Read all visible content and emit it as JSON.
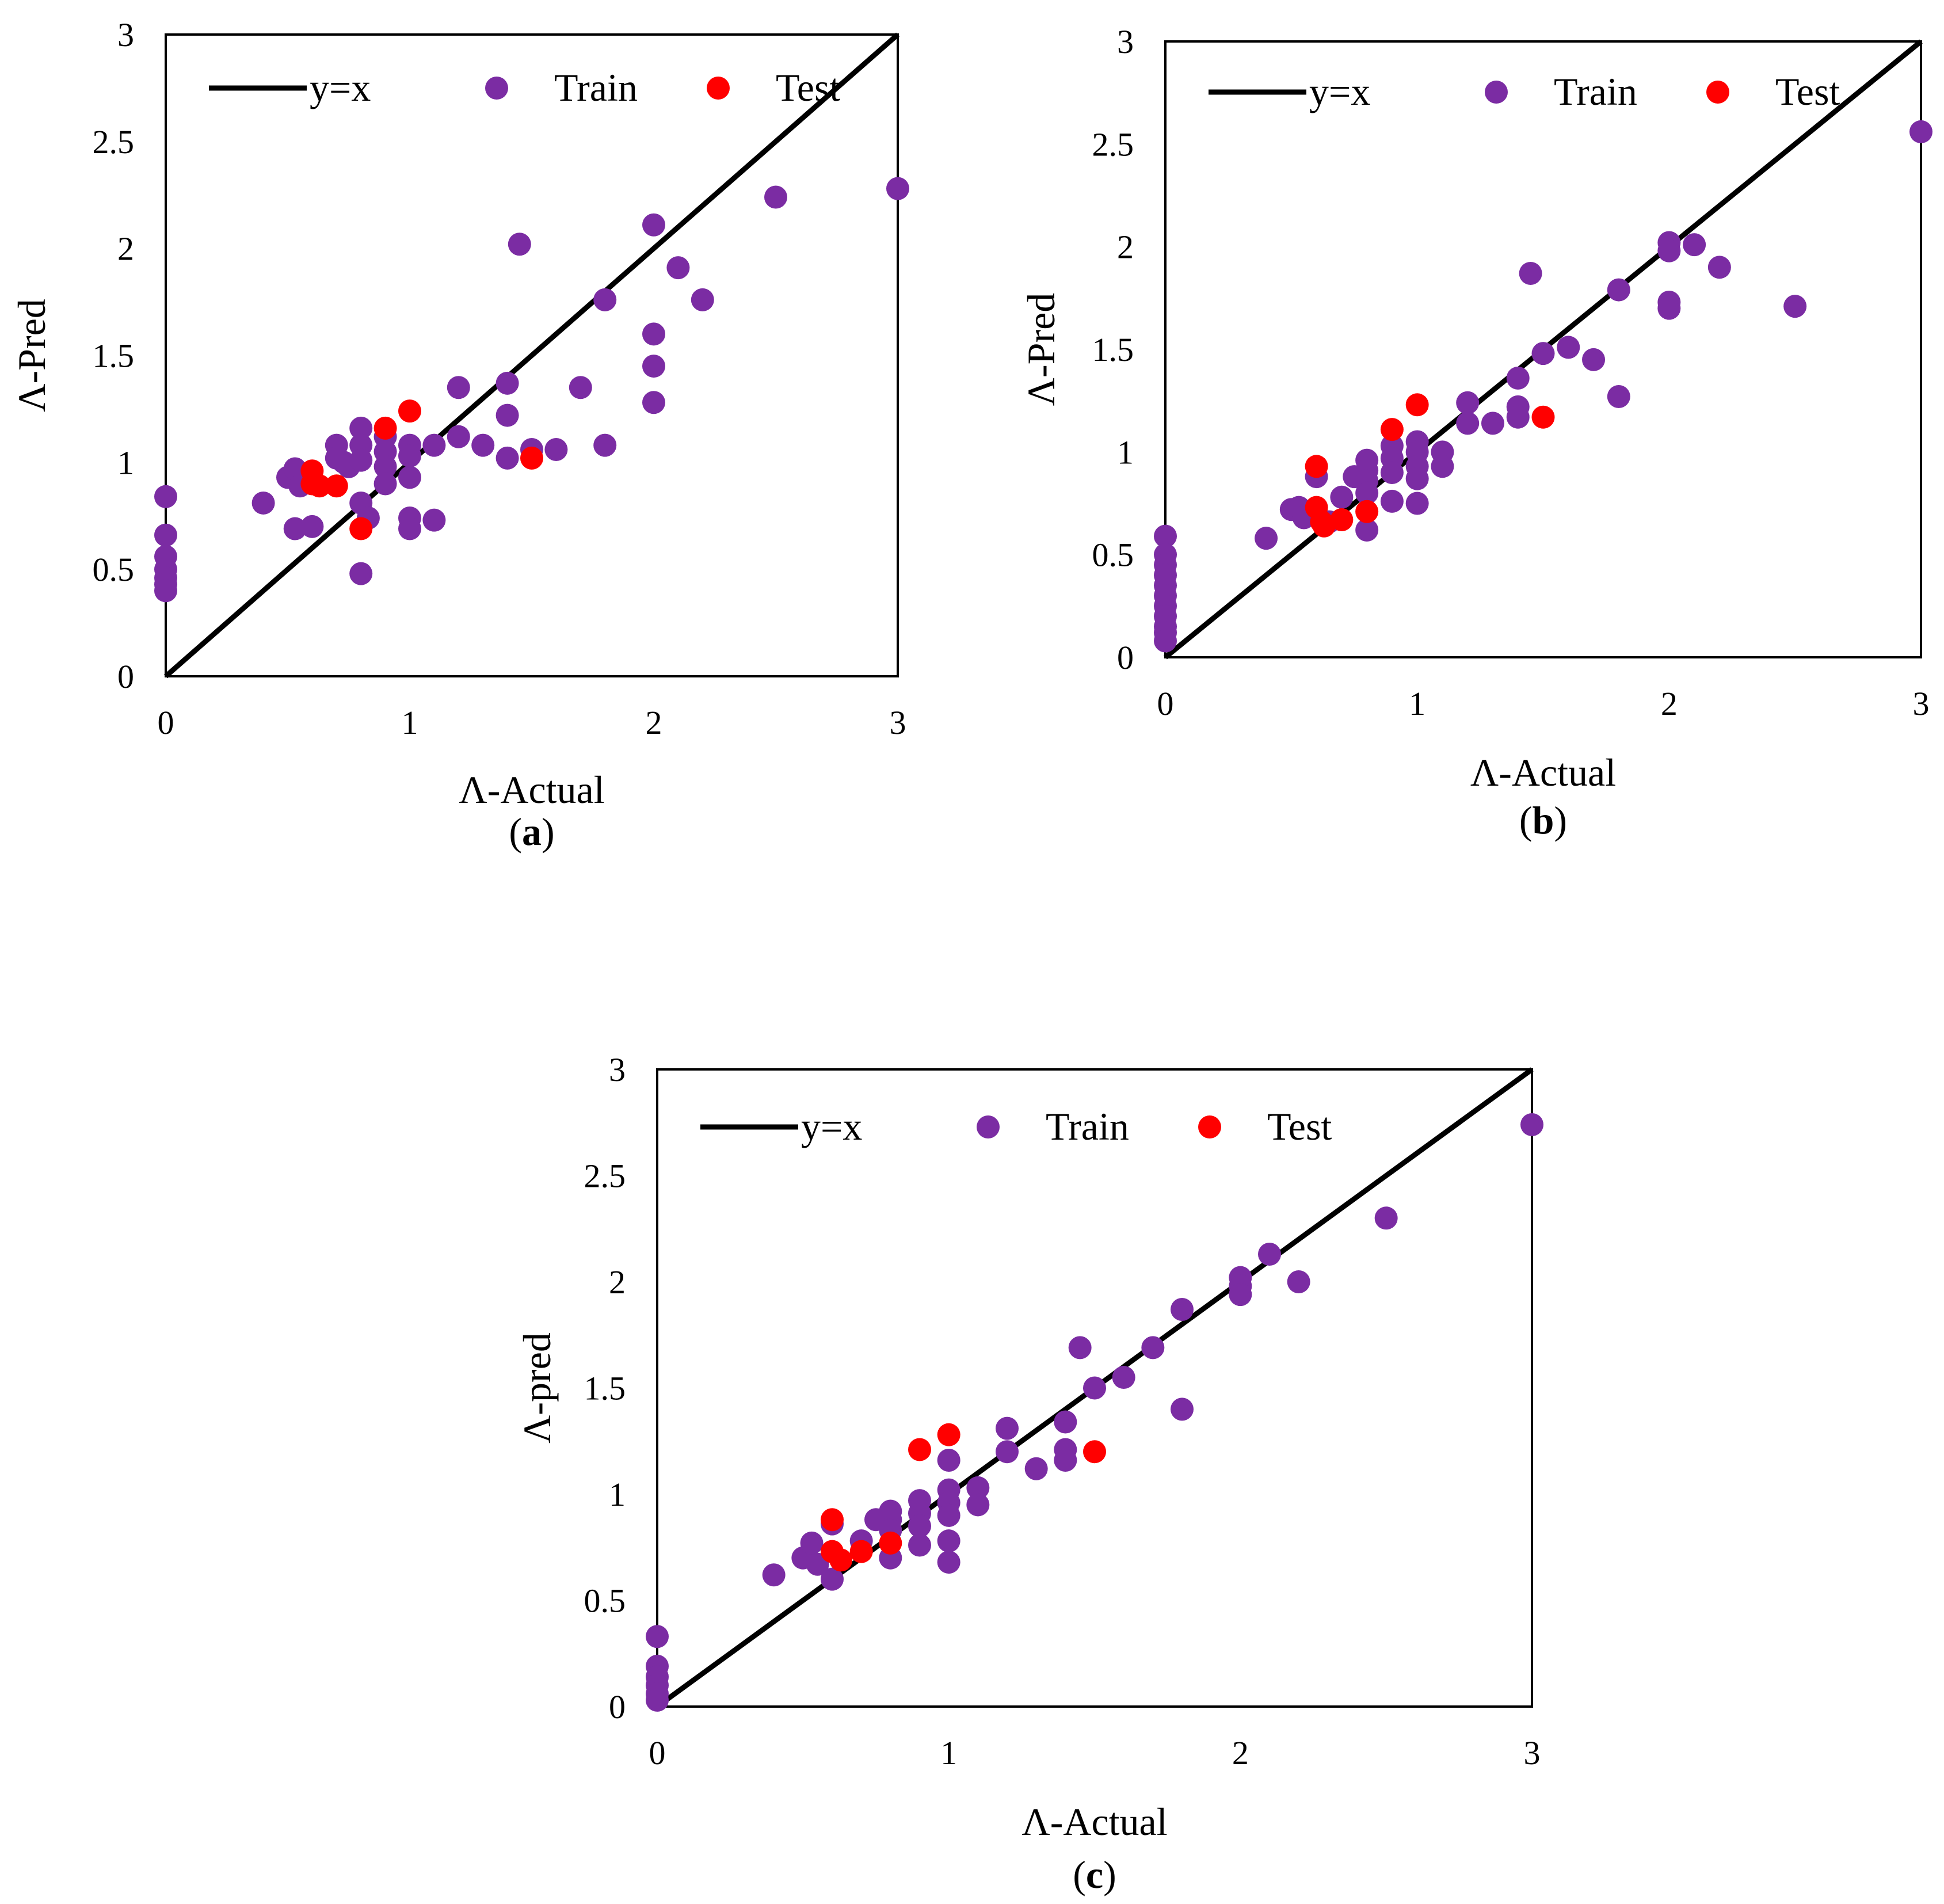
{
  "colors": {
    "train": "#7B2CA3",
    "test": "#FF0000",
    "line": "#000000",
    "frame": "#000000"
  },
  "chart_data": [
    {
      "type": "scatter",
      "panel": "(a)",
      "panel_letter": "a",
      "xlabel": "Λ-Actual",
      "ylabel": "Λ-Pred",
      "xlim": [
        0,
        3
      ],
      "ylim": [
        0,
        3
      ],
      "xticks": [
        "0",
        "1",
        "2",
        "3"
      ],
      "yticks": [
        "0",
        "0.5",
        "1",
        "1.5",
        "2",
        "2.5",
        "3"
      ],
      "legend": [
        "y=x",
        "Train",
        "Test"
      ],
      "series": [
        {
          "name": "Train",
          "points": [
            [
              0,
              0.84
            ],
            [
              0,
              0.66
            ],
            [
              0,
              0.56
            ],
            [
              0,
              0.5
            ],
            [
              0,
              0.46
            ],
            [
              0,
              0.43
            ],
            [
              0,
              0.4
            ],
            [
              0.4,
              0.81
            ],
            [
              0.5,
              0.93
            ],
            [
              0.53,
              0.97
            ],
            [
              0.55,
              0.89
            ],
            [
              0.53,
              0.69
            ],
            [
              0.6,
              0.7
            ],
            [
              0.7,
              1.08
            ],
            [
              0.7,
              1.02
            ],
            [
              0.73,
              1.0
            ],
            [
              0.75,
              0.98
            ],
            [
              0.8,
              1.16
            ],
            [
              0.8,
              1.08
            ],
            [
              0.8,
              1.01
            ],
            [
              0.8,
              0.81
            ],
            [
              0.83,
              0.74
            ],
            [
              0.8,
              0.48
            ],
            [
              0.9,
              1.12
            ],
            [
              0.9,
              1.05
            ],
            [
              0.9,
              0.98
            ],
            [
              0.9,
              0.9
            ],
            [
              1.0,
              1.08
            ],
            [
              1.0,
              1.03
            ],
            [
              1.0,
              0.93
            ],
            [
              1.0,
              0.74
            ],
            [
              1.0,
              0.69
            ],
            [
              1.1,
              1.08
            ],
            [
              1.1,
              0.73
            ],
            [
              1.2,
              1.35
            ],
            [
              1.2,
              1.12
            ],
            [
              1.3,
              1.08
            ],
            [
              1.4,
              1.37
            ],
            [
              1.4,
              1.22
            ],
            [
              1.4,
              1.02
            ],
            [
              1.45,
              2.02
            ],
            [
              1.5,
              1.06
            ],
            [
              1.6,
              1.06
            ],
            [
              1.7,
              1.35
            ],
            [
              1.8,
              1.76
            ],
            [
              1.8,
              1.08
            ],
            [
              2.0,
              2.11
            ],
            [
              2.0,
              1.6
            ],
            [
              2.0,
              1.45
            ],
            [
              2.0,
              1.28
            ],
            [
              2.1,
              1.91
            ],
            [
              2.2,
              1.76
            ],
            [
              2.5,
              2.24
            ],
            [
              3.0,
              2.28
            ]
          ]
        },
        {
          "name": "Test",
          "points": [
            [
              0.6,
              0.96
            ],
            [
              0.6,
              0.9
            ],
            [
              0.63,
              0.89
            ],
            [
              0.7,
              0.89
            ],
            [
              0.8,
              0.69
            ],
            [
              0.9,
              1.16
            ],
            [
              1.0,
              1.24
            ],
            [
              1.5,
              1.02
            ]
          ]
        }
      ]
    },
    {
      "type": "scatter",
      "panel": "(b)",
      "panel_letter": "b",
      "xlabel": "Λ-Actual",
      "ylabel": "Λ-Pred",
      "xlim": [
        0,
        3
      ],
      "ylim": [
        0,
        3
      ],
      "xticks": [
        "0",
        "1",
        "2",
        "3"
      ],
      "yticks": [
        "0",
        "0.5",
        "1",
        "1.5",
        "2",
        "2.5",
        "3"
      ],
      "legend": [
        "y=x",
        "Train",
        "Test"
      ],
      "series": [
        {
          "name": "Train",
          "points": [
            [
              0,
              0.59
            ],
            [
              0,
              0.5
            ],
            [
              0,
              0.45
            ],
            [
              0,
              0.4
            ],
            [
              0,
              0.35
            ],
            [
              0,
              0.3
            ],
            [
              0,
              0.25
            ],
            [
              0,
              0.2
            ],
            [
              0,
              0.15
            ],
            [
              0,
              0.12
            ],
            [
              0,
              0.08
            ],
            [
              0.4,
              0.58
            ],
            [
              0.5,
              0.72
            ],
            [
              0.53,
              0.73
            ],
            [
              0.55,
              0.68
            ],
            [
              0.6,
              0.88
            ],
            [
              0.65,
              0.66
            ],
            [
              0.7,
              0.78
            ],
            [
              0.75,
              0.88
            ],
            [
              0.8,
              0.96
            ],
            [
              0.8,
              0.91
            ],
            [
              0.8,
              0.86
            ],
            [
              0.8,
              0.8
            ],
            [
              0.8,
              0.62
            ],
            [
              0.9,
              1.03
            ],
            [
              0.9,
              0.97
            ],
            [
              0.9,
              0.9
            ],
            [
              0.9,
              0.76
            ],
            [
              1.0,
              1.05
            ],
            [
              1.0,
              1.0
            ],
            [
              1.0,
              0.93
            ],
            [
              1.0,
              0.87
            ],
            [
              1.0,
              0.75
            ],
            [
              1.1,
              1.0
            ],
            [
              1.1,
              0.93
            ],
            [
              1.2,
              1.24
            ],
            [
              1.2,
              1.14
            ],
            [
              1.3,
              1.14
            ],
            [
              1.4,
              1.36
            ],
            [
              1.4,
              1.22
            ],
            [
              1.4,
              1.17
            ],
            [
              1.45,
              1.87
            ],
            [
              1.5,
              1.48
            ],
            [
              1.6,
              1.51
            ],
            [
              1.7,
              1.45
            ],
            [
              1.8,
              1.79
            ],
            [
              1.8,
              1.27
            ],
            [
              2.0,
              2.02
            ],
            [
              2.0,
              1.98
            ],
            [
              2.0,
              1.73
            ],
            [
              2.0,
              1.7
            ],
            [
              2.1,
              2.01
            ],
            [
              2.2,
              1.9
            ],
            [
              2.5,
              1.71
            ],
            [
              3.0,
              2.56
            ]
          ]
        },
        {
          "name": "Test",
          "points": [
            [
              0.6,
              0.93
            ],
            [
              0.6,
              0.73
            ],
            [
              0.62,
              0.66
            ],
            [
              0.63,
              0.64
            ],
            [
              0.7,
              0.67
            ],
            [
              0.8,
              0.71
            ],
            [
              0.9,
              1.11
            ],
            [
              1.0,
              1.23
            ],
            [
              1.5,
              1.17
            ]
          ]
        }
      ]
    },
    {
      "type": "scatter",
      "panel": "(c)",
      "panel_letter": "c",
      "xlabel": "Λ-Actual",
      "ylabel": "Λ-pred",
      "xlim": [
        0,
        3
      ],
      "ylim": [
        0,
        3
      ],
      "xticks": [
        "0",
        "1",
        "2",
        "3"
      ],
      "yticks": [
        "0",
        "0.5",
        "1",
        "1.5",
        "2",
        "2.5",
        "3"
      ],
      "legend": [
        "y=x",
        "Train",
        "Test"
      ],
      "series": [
        {
          "name": "Train",
          "points": [
            [
              0,
              0.33
            ],
            [
              0,
              0.19
            ],
            [
              0,
              0.14
            ],
            [
              0,
              0.1
            ],
            [
              0,
              0.06
            ],
            [
              0,
              0.03
            ],
            [
              0.4,
              0.62
            ],
            [
              0.5,
              0.7
            ],
            [
              0.53,
              0.77
            ],
            [
              0.55,
              0.67
            ],
            [
              0.6,
              0.86
            ],
            [
              0.6,
              0.6
            ],
            [
              0.7,
              0.78
            ],
            [
              0.75,
              0.88
            ],
            [
              0.8,
              0.92
            ],
            [
              0.8,
              0.88
            ],
            [
              0.8,
              0.83
            ],
            [
              0.8,
              0.7
            ],
            [
              0.9,
              0.97
            ],
            [
              0.9,
              0.91
            ],
            [
              0.9,
              0.85
            ],
            [
              0.9,
              0.76
            ],
            [
              1.0,
              1.16
            ],
            [
              1.0,
              1.02
            ],
            [
              1.0,
              0.96
            ],
            [
              1.0,
              0.9
            ],
            [
              1.0,
              0.78
            ],
            [
              1.0,
              0.68
            ],
            [
              1.1,
              1.03
            ],
            [
              1.1,
              0.95
            ],
            [
              1.2,
              1.31
            ],
            [
              1.2,
              1.2
            ],
            [
              1.3,
              1.12
            ],
            [
              1.4,
              1.34
            ],
            [
              1.4,
              1.21
            ],
            [
              1.4,
              1.16
            ],
            [
              1.45,
              1.69
            ],
            [
              1.5,
              1.5
            ],
            [
              1.6,
              1.55
            ],
            [
              1.7,
              1.69
            ],
            [
              1.8,
              1.87
            ],
            [
              1.8,
              1.4
            ],
            [
              2.0,
              2.02
            ],
            [
              2.0,
              1.98
            ],
            [
              2.0,
              1.94
            ],
            [
              2.1,
              2.13
            ],
            [
              2.2,
              2.0
            ],
            [
              2.5,
              2.3
            ],
            [
              3.0,
              2.74
            ]
          ]
        },
        {
          "name": "Test",
          "points": [
            [
              0.6,
              0.88
            ],
            [
              0.6,
              0.73
            ],
            [
              0.63,
              0.69
            ],
            [
              0.7,
              0.73
            ],
            [
              0.8,
              0.77
            ],
            [
              0.9,
              1.21
            ],
            [
              1.0,
              1.28
            ],
            [
              1.5,
              1.2
            ]
          ]
        }
      ]
    }
  ]
}
